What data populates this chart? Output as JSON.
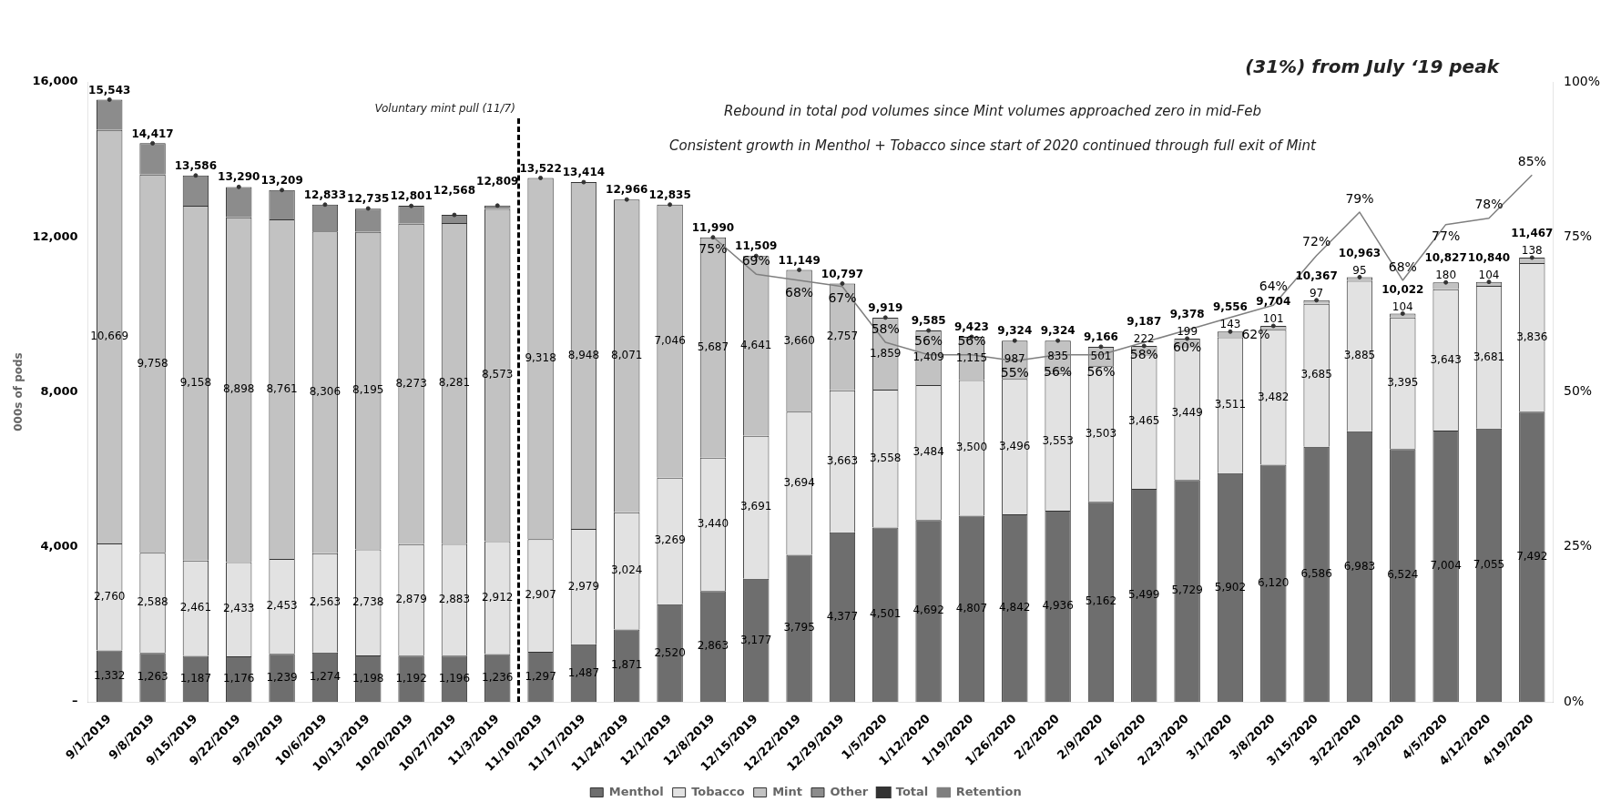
{
  "chart_data": {
    "type": "bar",
    "stacked": true,
    "categories": [
      "9/1/2019",
      "9/8/2019",
      "9/15/2019",
      "9/22/2019",
      "9/29/2019",
      "10/6/2019",
      "10/13/2019",
      "10/20/2019",
      "10/27/2019",
      "11/3/2019",
      "11/10/2019",
      "11/17/2019",
      "11/24/2019",
      "12/1/2019",
      "12/8/2019",
      "12/15/2019",
      "12/22/2019",
      "12/29/2019",
      "1/5/2020",
      "1/12/2020",
      "1/19/2020",
      "1/26/2020",
      "2/2/2020",
      "2/9/2020",
      "2/16/2020",
      "2/23/2020",
      "3/1/2020",
      "3/8/2020",
      "3/15/2020",
      "3/22/2020",
      "3/29/2020",
      "4/5/2020",
      "4/12/2020",
      "4/19/2020"
    ],
    "ylabel": "000s of pods",
    "ylim": [
      0,
      16000
    ],
    "yticks": [
      {
        "value": 0,
        "label": "–"
      },
      {
        "value": 4000,
        "label": "4,000"
      },
      {
        "value": 8000,
        "label": "8,000"
      },
      {
        "value": 12000,
        "label": "12,000"
      },
      {
        "value": 16000,
        "label": "16,000"
      }
    ],
    "y2lim": [
      0,
      100
    ],
    "y2ticks": [
      {
        "value": 0,
        "label": "0%"
      },
      {
        "value": 25,
        "label": "25%"
      },
      {
        "value": 50,
        "label": "50%"
      },
      {
        "value": 75,
        "label": "75%"
      },
      {
        "value": 100,
        "label": "100%"
      }
    ],
    "grid": false,
    "legend": "bottom",
    "series": [
      {
        "name": "Menthol",
        "color": "#6e6e6e",
        "values": [
          1332,
          1263,
          1187,
          1176,
          1239,
          1274,
          1198,
          1192,
          1196,
          1236,
          1297,
          1487,
          1871,
          2520,
          2863,
          3177,
          3795,
          4377,
          4501,
          4692,
          4807,
          4842,
          4936,
          5162,
          5499,
          5729,
          5902,
          6120,
          6586,
          6983,
          6524,
          7004,
          7055,
          7492
        ],
        "value_labels": [
          "1,332",
          "1,263",
          "1,187",
          "1,176",
          "1,239",
          "1,274",
          "1,198",
          "1,192",
          "1,196",
          "1,236",
          "1,297",
          "1,487",
          "1,871",
          "2,520",
          "2,863",
          "3,177",
          "3,795",
          "4,377",
          "4,501",
          "4,692",
          "4,807",
          "4,842",
          "4,936",
          "5,162",
          "5,499",
          "5,729",
          "5,902",
          "6,120",
          "6,586",
          "6,983",
          "6,524",
          "7,004",
          "7,055",
          "7,492"
        ]
      },
      {
        "name": "Tobacco",
        "color": "#e2e2e2",
        "values": [
          2760,
          2588,
          2461,
          2433,
          2453,
          2563,
          2738,
          2879,
          2883,
          2912,
          2907,
          2979,
          3024,
          3269,
          3440,
          3691,
          3694,
          3663,
          3558,
          3484,
          3500,
          3496,
          3553,
          3503,
          3465,
          3449,
          3511,
          3482,
          3685,
          3885,
          3395,
          3643,
          3681,
          3836
        ],
        "value_labels": [
          "2,760",
          "2,588",
          "2,461",
          "2,433",
          "2,453",
          "2,563",
          "2,738",
          "2,879",
          "2,883",
          "2,912",
          "2,907",
          "2,979",
          "3,024",
          "3,269",
          "3,440",
          "3,691",
          "3,694",
          "3,663",
          "3,558",
          "3,484",
          "3,500",
          "3,496",
          "3,553",
          "3,503",
          "3,465",
          "3,449",
          "3,511",
          "3,482",
          "3,685",
          "3,885",
          "3,395",
          "3,643",
          "3,681",
          "3,836"
        ]
      },
      {
        "name": "Mint",
        "color": "#c2c2c2",
        "values": [
          10669,
          9758,
          9158,
          8898,
          8761,
          8306,
          8195,
          8273,
          8281,
          8573,
          9318,
          8948,
          8071,
          7046,
          5687,
          4641,
          3660,
          2757,
          1859,
          1409,
          1115,
          987,
          835,
          501,
          222,
          199,
          143,
          101,
          97,
          95,
          104,
          180,
          104,
          138
        ],
        "value_labels": [
          "10,669",
          "9,758",
          "9,158",
          "8,898",
          "8,761",
          "8,306",
          "8,195",
          "8,273",
          "8,281",
          "8,573",
          "9,318",
          "8,948",
          "8,071",
          "7,046",
          "5,687",
          "4,641",
          "3,660",
          "2,757",
          "1,859",
          "1,409",
          "1,115",
          "987",
          "835",
          "501",
          "222",
          "199",
          "143",
          "101",
          "97",
          "95",
          "104",
          "180",
          "104",
          "138"
        ]
      },
      {
        "name": "Other",
        "color": "#8c8c8c",
        "values": [
          780,
          810,
          780,
          780,
          760,
          690,
          600,
          460,
          210,
          90,
          null,
          null,
          null,
          null,
          null,
          null,
          null,
          null,
          null,
          null,
          null,
          null,
          null,
          null,
          null,
          null,
          null,
          null,
          null,
          null,
          null,
          null,
          null,
          null
        ]
      },
      {
        "name": "Total",
        "type": "scatter",
        "marker": "circle",
        "color": "#333333",
        "values": [
          15543,
          14417,
          13586,
          13290,
          13209,
          12833,
          12735,
          12801,
          12568,
          12809,
          13522,
          13414,
          12966,
          12835,
          11990,
          11509,
          11149,
          10797,
          9919,
          9585,
          9423,
          9324,
          9324,
          9166,
          9187,
          9378,
          9556,
          9704,
          10367,
          10963,
          10022,
          10827,
          10840,
          11467
        ],
        "value_labels": [
          "15,543",
          "14,417",
          "13,586",
          "13,290",
          "13,209",
          "12,833",
          "12,735",
          "12,801",
          "12,568",
          "12,809",
          "13,522",
          "13,414",
          "12,966",
          "12,835",
          "11,990",
          "11,509",
          "11,149",
          "10,797",
          "9,919",
          "9,585",
          "9,423",
          "9,324",
          "9,324",
          "9,166",
          "9,187",
          "9,378",
          "9,556",
          "9,704",
          "10,367",
          "10,963",
          "10,022",
          "10,827",
          "10,840",
          "11,467"
        ]
      },
      {
        "name": "Retention",
        "type": "line",
        "axis": "y2",
        "color": "#7f7f7f",
        "marker": "none",
        "values": [
          null,
          null,
          null,
          null,
          null,
          null,
          null,
          null,
          null,
          null,
          null,
          null,
          null,
          null,
          75,
          69,
          68,
          67,
          58,
          56,
          56,
          55,
          56,
          56,
          58,
          60,
          62,
          64,
          72,
          79,
          68,
          77,
          78,
          85
        ],
        "value_labels": [
          null,
          null,
          null,
          null,
          null,
          null,
          null,
          null,
          null,
          null,
          null,
          null,
          null,
          null,
          "75%",
          "69%",
          "68%",
          "67%",
          "58%",
          "56%",
          "56%",
          "55%",
          "56%",
          "56%",
          "58%",
          "60%",
          "62%",
          "64%",
          "72%",
          "79%",
          "68%",
          "77%",
          "78%",
          "85%"
        ]
      }
    ],
    "annotations": [
      "Voluntary mint pull (11/7)",
      "(31%) from July ‘19 peak",
      "Rebound in total pod volumes since Mint volumes approached zero in mid-Feb",
      "Consistent growth in Menthol + Tobacco since start of 2020 continued through full exit of Mint"
    ]
  }
}
